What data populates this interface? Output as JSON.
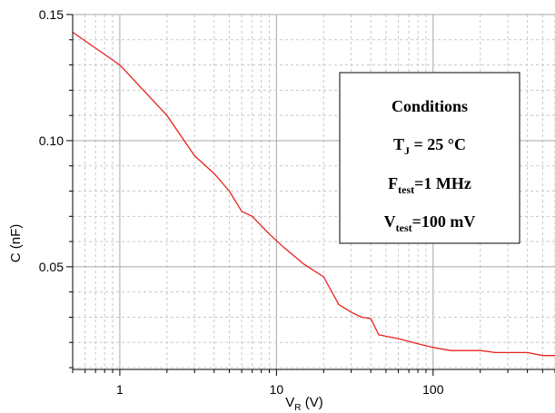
{
  "chart_data": {
    "type": "line",
    "xlabel": "V",
    "xlabel_sub": "R",
    "xlabel_unit": " (V)",
    "ylabel": "C (nF)",
    "xscale": "log",
    "xlim": [
      0.5,
      600
    ],
    "ylim": [
      0.0093,
      0.15
    ],
    "grid": true,
    "x_ticks": [
      1,
      10,
      100
    ],
    "x_tick_labels": [
      "1",
      "10",
      "100"
    ],
    "y_ticks": [
      0.05,
      0.1,
      0.15
    ],
    "y_tick_labels": [
      "0.05",
      "0.10",
      "0.15"
    ],
    "line_color": "#e8201c",
    "series": [
      {
        "x": [
          0.5,
          1,
          2,
          3,
          4,
          5,
          6,
          7,
          9,
          11,
          15,
          20,
          25,
          30,
          35,
          40,
          45,
          60,
          80,
          100,
          130,
          200,
          250,
          400,
          500,
          600
        ],
        "y": [
          0.143,
          0.13,
          0.11,
          0.094,
          0.087,
          0.08,
          0.072,
          0.07,
          0.063,
          0.058,
          0.051,
          0.046,
          0.035,
          0.032,
          0.03,
          0.0295,
          0.023,
          0.0215,
          0.0195,
          0.018,
          0.0168,
          0.0168,
          0.016,
          0.016,
          0.0148,
          0.0148
        ]
      }
    ],
    "legend": {
      "placement": "right",
      "title": "Conditions",
      "line1_main": "T",
      "line1_sub": "J",
      "line1_rest": " = 25 °C",
      "line2_main": "F",
      "line2_sub": "test",
      "line2_rest": "=1 MHz",
      "line3_main": "V",
      "line3_sub": "test",
      "line3_rest": "=100 mV"
    }
  }
}
